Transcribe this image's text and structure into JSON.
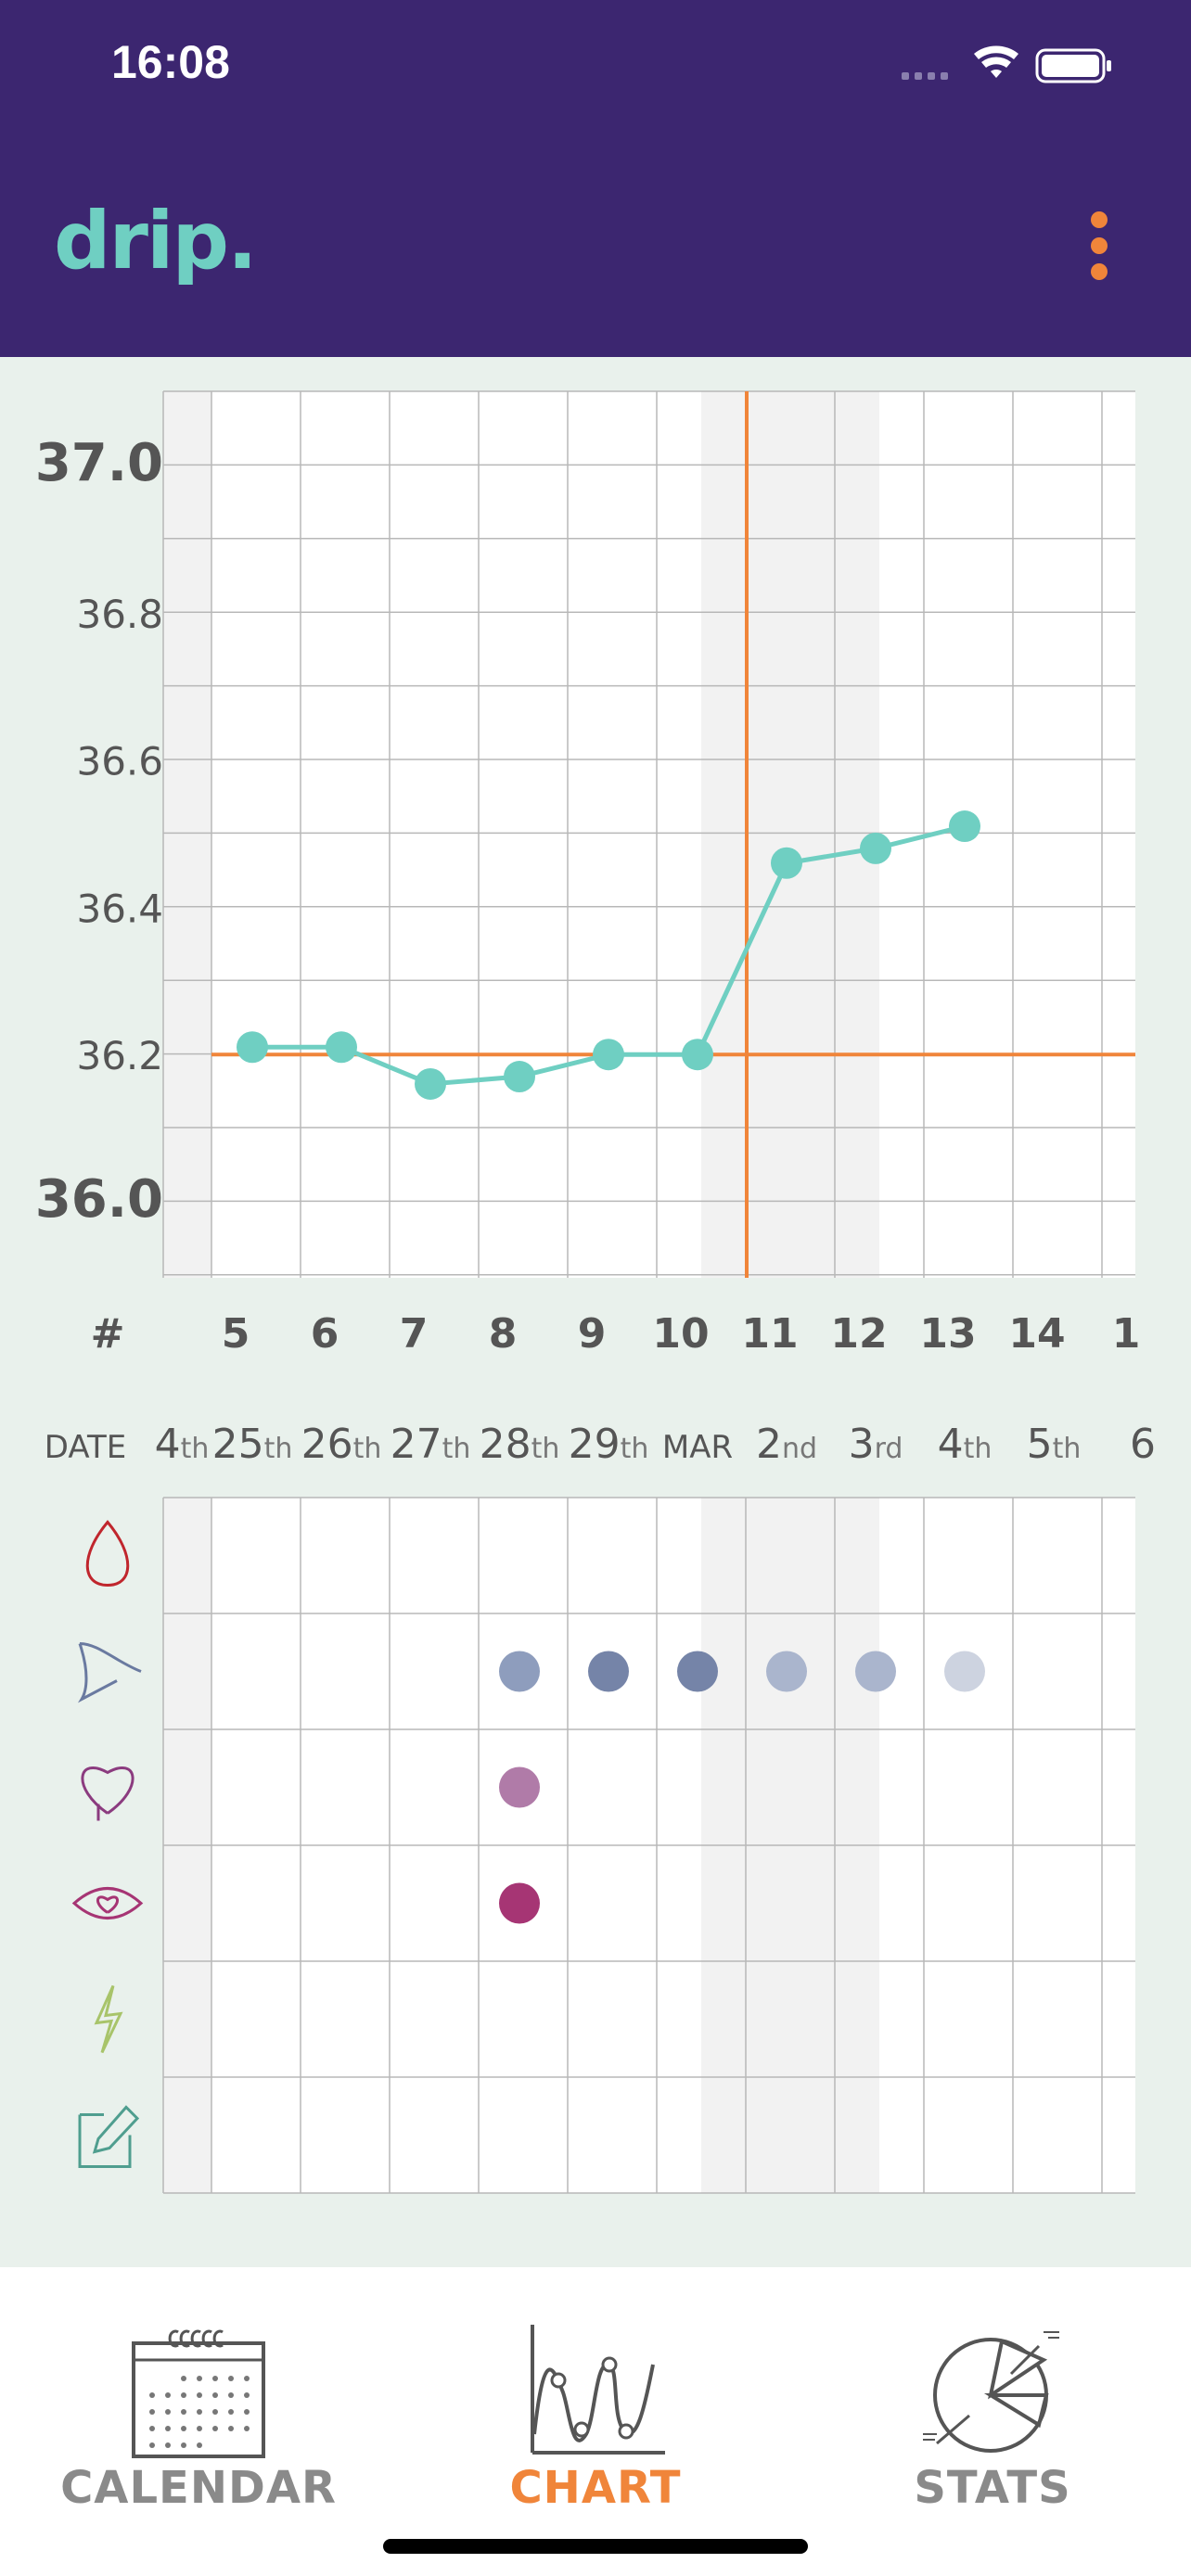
{
  "status_bar": {
    "time": "16:08"
  },
  "header": {
    "title": "drip."
  },
  "colors": {
    "header_bg": "#3c2670",
    "accent_teal": "#6fcfc2",
    "accent_orange": "#f0853a",
    "grid": "#b8b8b8",
    "shade": "#f2f2f2"
  },
  "chart": {
    "y_labels": [
      "37.0",
      "36.8",
      "36.6",
      "36.4",
      "36.2",
      "36.0"
    ],
    "cycle_day_header": "#",
    "cycle_days": [
      "5",
      "6",
      "7",
      "8",
      "9",
      "10",
      "11",
      "12",
      "13",
      "14",
      "1"
    ],
    "date_header": "DATE",
    "dates": [
      {
        "main": "4",
        "suffix": "th"
      },
      {
        "main": "25",
        "suffix": "th"
      },
      {
        "main": "26",
        "suffix": "th"
      },
      {
        "main": "27",
        "suffix": "th"
      },
      {
        "main": "28",
        "suffix": "th"
      },
      {
        "main": "29",
        "suffix": "th"
      },
      {
        "main": "MAR",
        "suffix": ""
      },
      {
        "main": "2",
        "suffix": "nd"
      },
      {
        "main": "3",
        "suffix": "rd"
      },
      {
        "main": "4",
        "suffix": "th"
      },
      {
        "main": "5",
        "suffix": "th"
      },
      {
        "main": "6",
        "suffix": ""
      }
    ],
    "temperatures": [
      36.21,
      36.21,
      36.16,
      36.17,
      36.2,
      36.2,
      36.46,
      36.48,
      36.51
    ],
    "cover_line": 36.2,
    "symptom_rows": [
      "bleeding-icon",
      "mucus-icon",
      "sex-icon",
      "desire-icon",
      "pain-icon",
      "note-icon"
    ],
    "mucus_dots": [
      "#8e9dbd",
      "#7584a8",
      "#7584a8",
      "#aab5cd",
      "#aab5cd",
      "#cdd3e0"
    ],
    "sex_dot": "#b07ba8",
    "desire_dot": "#a63574"
  },
  "nav": {
    "calendar_label": "CALENDAR",
    "chart_label": "CHART",
    "stats_label": "STATS"
  }
}
